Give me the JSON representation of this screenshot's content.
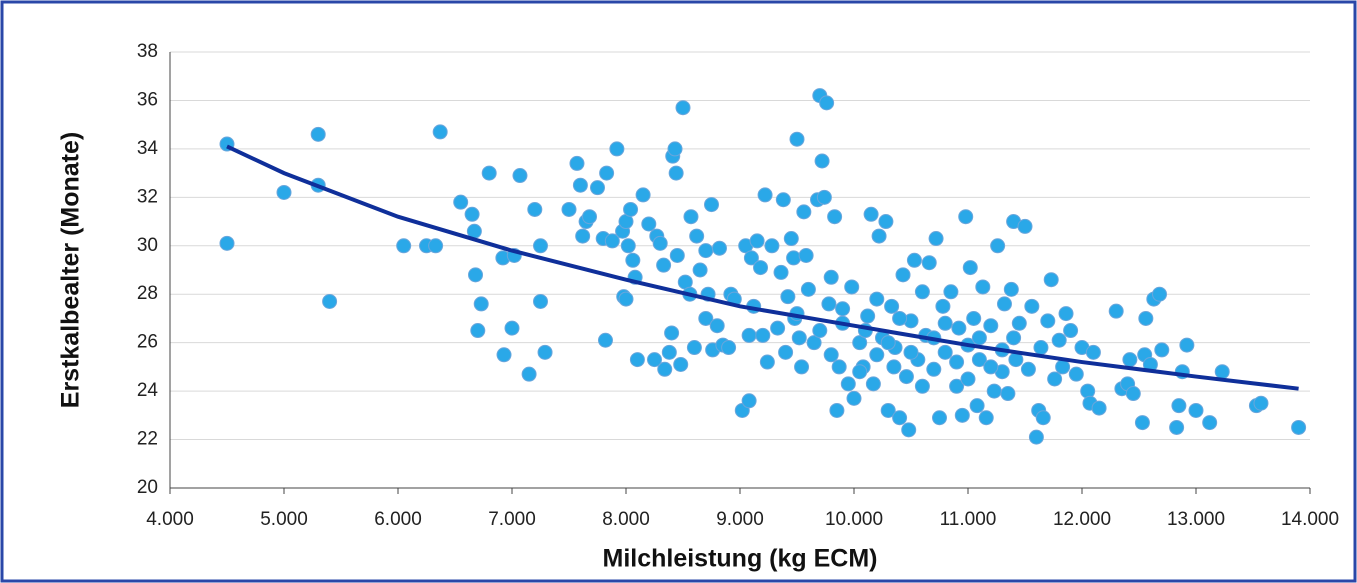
{
  "chart_data": {
    "type": "scatter",
    "xlabel": "Milchleistung (kg ECM)",
    "ylabel": "Erstkalbealter (Monate)",
    "color": "#2aa8e8",
    "x": [
      4500,
      4500,
      5000,
      5300,
      5300,
      5400,
      6050,
      6250,
      6330,
      6370,
      6550,
      6650,
      6670,
      6680,
      6700,
      6730,
      6800,
      6920,
      6930,
      7000,
      7020,
      7070,
      7150,
      7200,
      7250,
      7250,
      7290,
      7500,
      7570,
      7600,
      7620,
      7650,
      7680,
      7750,
      7800,
      7820,
      7830,
      7880,
      7920,
      7970,
      7980,
      8000,
      8000,
      8020,
      8040,
      8060,
      8080,
      8100,
      8150,
      8200,
      8250,
      8270,
      8300,
      8330,
      8340,
      8380,
      8400,
      8410,
      8430,
      8440,
      8450,
      8480,
      8500,
      8520,
      8560,
      8570,
      8600,
      8620,
      8650,
      8700,
      8700,
      8720,
      8750,
      8760,
      8800,
      8820,
      8850,
      8900,
      8920,
      8950,
      9020,
      9050,
      9080,
      9080,
      9100,
      9120,
      9150,
      9180,
      9200,
      9220,
      9240,
      9280,
      9330,
      9360,
      9380,
      9400,
      9420,
      9450,
      9470,
      9480,
      9500,
      9520,
      9540,
      9560,
      9580,
      9600,
      9650,
      9680,
      9700,
      9720,
      9740,
      9760,
      9780,
      9800,
      9830,
      9850,
      9870,
      9900,
      9950,
      9980,
      10000,
      10050,
      10080,
      10120,
      10150,
      10170,
      10200,
      10220,
      10250,
      10280,
      10300,
      10330,
      10360,
      10400,
      10430,
      10460,
      10480,
      10500,
      10530,
      10560,
      10600,
      10630,
      10660,
      10700,
      10720,
      10750,
      10780,
      10800,
      10850,
      10900,
      10920,
      10950,
      10980,
      11000,
      11020,
      11050,
      11080,
      11100,
      11130,
      11160,
      11200,
      11230,
      11260,
      11300,
      11320,
      11350,
      11380,
      11400,
      11420,
      11450,
      11500,
      11530,
      11560,
      11600,
      11620,
      11640,
      11660,
      11700,
      11730,
      11760,
      11800,
      11830,
      11860,
      11900,
      11950,
      12000,
      12050,
      12070,
      12100,
      12150,
      12300,
      12350,
      12400,
      12420,
      12450,
      12530,
      12550,
      12560,
      12600,
      12630,
      12680,
      12700,
      12830,
      12850,
      12880,
      12920,
      13000,
      13120,
      13230,
      13530,
      13570,
      13900,
      9900,
      10100,
      10300,
      10500,
      10700,
      10900,
      11100,
      11300,
      9700,
      9500,
      10400,
      10600,
      10800,
      11000,
      11200,
      11400,
      10200,
      9800,
      10050,
      10350
    ],
    "values": [
      34.2,
      30.1,
      32.2,
      34.6,
      32.5,
      27.7,
      30.0,
      30.0,
      30.0,
      34.7,
      31.8,
      31.3,
      30.6,
      28.8,
      26.5,
      27.6,
      33.0,
      29.5,
      25.5,
      26.6,
      29.6,
      32.9,
      24.7,
      31.5,
      30.0,
      27.7,
      25.6,
      31.5,
      33.4,
      32.5,
      30.4,
      31.0,
      31.2,
      32.4,
      30.3,
      26.1,
      33.0,
      30.2,
      34.0,
      30.6,
      27.9,
      27.8,
      31.0,
      30.0,
      31.5,
      29.4,
      28.7,
      25.3,
      32.1,
      30.9,
      25.3,
      30.4,
      30.1,
      29.2,
      24.9,
      25.6,
      26.4,
      33.7,
      34.0,
      33.0,
      29.6,
      25.1,
      35.7,
      28.5,
      28.0,
      31.2,
      25.8,
      30.4,
      29.0,
      29.8,
      27.0,
      28.0,
      31.7,
      25.7,
      26.7,
      29.9,
      25.9,
      25.8,
      28.0,
      27.8,
      23.2,
      30.0,
      23.6,
      26.3,
      29.5,
      27.5,
      30.2,
      29.1,
      26.3,
      32.1,
      25.2,
      30.0,
      26.6,
      28.9,
      31.9,
      25.6,
      27.9,
      30.3,
      29.5,
      27.0,
      34.4,
      26.2,
      25.0,
      31.4,
      29.6,
      28.2,
      26.0,
      31.9,
      36.2,
      33.5,
      32.0,
      35.9,
      27.6,
      28.7,
      31.2,
      23.2,
      25.0,
      26.8,
      24.3,
      28.3,
      23.7,
      26.0,
      25.0,
      27.1,
      31.3,
      24.3,
      25.5,
      30.4,
      26.2,
      31.0,
      23.2,
      27.5,
      25.8,
      22.9,
      28.8,
      24.6,
      22.4,
      26.9,
      29.4,
      25.3,
      28.1,
      26.3,
      29.3,
      24.9,
      30.3,
      22.9,
      27.5,
      25.6,
      28.1,
      24.2,
      26.6,
      23.0,
      31.2,
      25.9,
      29.1,
      27.0,
      23.4,
      25.3,
      28.3,
      22.9,
      26.7,
      24.0,
      30.0,
      25.7,
      27.6,
      23.9,
      28.2,
      31.0,
      25.3,
      26.8,
      30.8,
      24.9,
      27.5,
      22.1,
      23.2,
      25.8,
      22.9,
      26.9,
      28.6,
      24.5,
      26.1,
      25.0,
      27.2,
      26.5,
      24.7,
      25.8,
      24.0,
      23.5,
      25.6,
      23.3,
      27.3,
      24.1,
      24.3,
      25.3,
      23.9,
      22.7,
      25.5,
      27.0,
      25.1,
      27.8,
      28.0,
      25.7,
      22.5,
      23.4,
      24.8,
      25.9,
      23.2,
      22.7,
      24.8,
      23.4,
      23.5,
      22.5,
      27.4,
      26.5,
      26.0,
      25.6,
      26.2,
      25.2,
      26.2,
      24.8,
      26.5,
      27.2,
      27.0,
      24.2,
      26.8,
      24.5,
      25.0,
      26.2,
      27.8,
      25.5,
      24.8,
      25.0
    ],
    "trendline": {
      "color": "#0f2f9a",
      "x": [
        4500,
        5000,
        6000,
        7000,
        8000,
        9000,
        10000,
        11000,
        12000,
        13000,
        13900
      ],
      "values": [
        34.1,
        33.0,
        31.2,
        29.8,
        28.6,
        27.5,
        26.7,
        25.9,
        25.2,
        24.6,
        24.1
      ]
    },
    "xlim": [
      4000,
      14000
    ],
    "xticks": [
      {
        "value": 4000,
        "label": "4.000"
      },
      {
        "value": 5000,
        "label": "5.000"
      },
      {
        "value": 6000,
        "label": "6.000"
      },
      {
        "value": 7000,
        "label": "7.000"
      },
      {
        "value": 8000,
        "label": "8.000"
      },
      {
        "value": 9000,
        "label": "9.000"
      },
      {
        "value": 10000,
        "label": "10.000"
      },
      {
        "value": 11000,
        "label": "11.000"
      },
      {
        "value": 12000,
        "label": "12.000"
      },
      {
        "value": 13000,
        "label": "13.000"
      },
      {
        "value": 14000,
        "label": "14.000"
      }
    ],
    "ylim": [
      20,
      38
    ],
    "yticks": [
      20,
      22,
      24,
      26,
      28,
      30,
      32,
      34,
      36,
      38
    ],
    "grid": true
  }
}
